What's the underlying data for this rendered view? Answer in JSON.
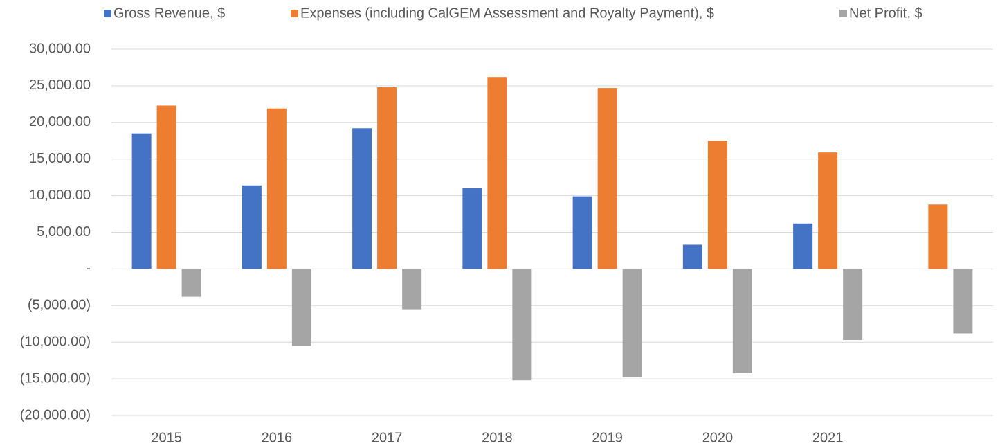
{
  "chart_data": {
    "type": "bar",
    "categories": [
      "2015",
      "2016",
      "2017",
      "2018",
      "2019",
      "2020",
      "2021",
      null
    ],
    "series": [
      {
        "name": "Gross Revenue, $",
        "color": "#4472c4",
        "values": [
          18500,
          11400,
          19200,
          11000,
          9900,
          3300,
          6200,
          null
        ]
      },
      {
        "name": "Expenses (including CalGEM Assessment and Royalty Payment), $",
        "color": "#ed7d31",
        "values": [
          22300,
          21900,
          24800,
          26200,
          24700,
          17500,
          15900,
          8800
        ]
      },
      {
        "name": "Net Profit, $",
        "color": "#a5a5a5",
        "values": [
          -3800,
          -10500,
          -5500,
          -15200,
          -14800,
          -14200,
          -9700,
          -8800
        ]
      }
    ],
    "ylim": [
      -20000,
      30000
    ],
    "yticks": [
      {
        "value": -20000,
        "label": "(20,000.00)"
      },
      {
        "value": -15000,
        "label": "(15,000.00)"
      },
      {
        "value": -10000,
        "label": "(10,000.00)"
      },
      {
        "value": -5000,
        "label": "(5,000.00)"
      },
      {
        "value": 0,
        "label": "-"
      },
      {
        "value": 5000,
        "label": "5,000.00"
      },
      {
        "value": 10000,
        "label": "10,000.00"
      },
      {
        "value": 15000,
        "label": "15,000.00"
      },
      {
        "value": 20000,
        "label": "20,000.00"
      },
      {
        "value": 25000,
        "label": "25,000.00"
      },
      {
        "value": 30000,
        "label": "30,000.00"
      }
    ],
    "grid": true,
    "legend": "top"
  }
}
